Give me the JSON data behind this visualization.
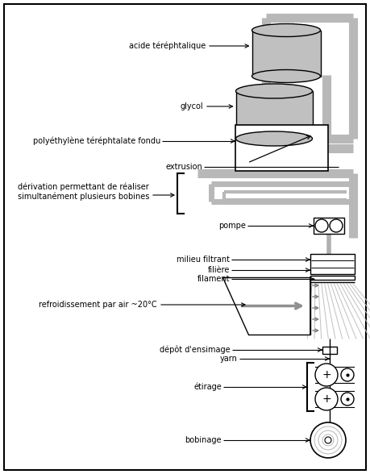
{
  "gray": "#c0c0c0",
  "pipe_gray": "#b0b0b0",
  "pipe_dark": "#909090",
  "fs": 7.0,
  "labels": {
    "acide": "acide téréphtalique",
    "glycol": "glycol",
    "pet": "polyéthylène téréphtalate fondu",
    "extrusion": "extrusion",
    "derivation": "dérivation permettant de réaliser\nsimultanément plusieurs bobines",
    "pompe": "pompe",
    "milieu": "milieu filtrant",
    "filiere": "filière",
    "filament": "filament",
    "refroid": "refroidissement par air ~20°C",
    "depot": "dépôt d'ensimage",
    "yarn": "yarn",
    "etirage": "étirage",
    "bobinage": "bobinage"
  }
}
